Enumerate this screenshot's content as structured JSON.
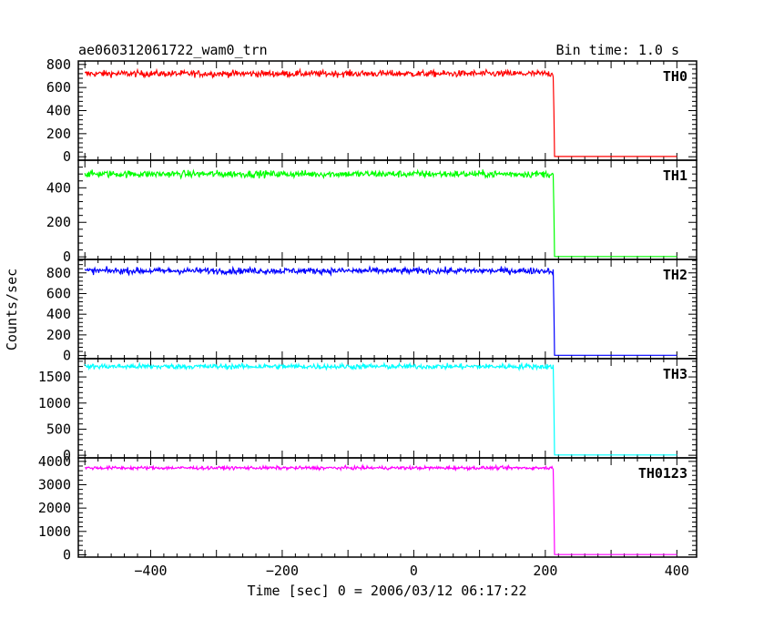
{
  "title": "ae060312061722_wam0_trn",
  "bin_time": "Bin time: 1.0 s",
  "xlabel": "Time [sec] 0 = 2006/03/12 06:17:22",
  "ylabel": "Counts/sec",
  "chart_data": {
    "type": "line",
    "xlim": [
      -510,
      430
    ],
    "x_ticks": [
      -400,
      -200,
      0,
      200,
      400
    ],
    "x_tick_labels": [
      "−400",
      "−200",
      "0",
      "200",
      "400"
    ],
    "grid": false,
    "dropoff_time": 212,
    "data_start": -500,
    "data_end": 400,
    "panels": [
      {
        "name": "TH0",
        "color": "#ff0000",
        "ylim": [
          -30,
          830
        ],
        "yticks": [
          0,
          200,
          400,
          600,
          800
        ],
        "ytick_labels": [
          "0",
          "200",
          "400",
          "600",
          "800"
        ],
        "mean": 720,
        "noise": 28,
        "after": 2
      },
      {
        "name": "TH1",
        "color": "#00ff00",
        "ylim": [
          -15,
          560
        ],
        "yticks": [
          0,
          200,
          400
        ],
        "ytick_labels": [
          "0",
          "200",
          "400"
        ],
        "mean": 480,
        "noise": 20,
        "after": 2
      },
      {
        "name": "TH2",
        "color": "#0000ff",
        "ylim": [
          -30,
          930
        ],
        "yticks": [
          0,
          200,
          400,
          600,
          800
        ],
        "ytick_labels": [
          "0",
          "200",
          "400",
          "600",
          "800"
        ],
        "mean": 820,
        "noise": 30,
        "after": 3
      },
      {
        "name": "TH3",
        "color": "#00ffff",
        "ylim": [
          -50,
          1850
        ],
        "yticks": [
          0,
          500,
          1000,
          1500
        ],
        "ytick_labels": [
          "0",
          "500",
          "1000",
          "1500"
        ],
        "mean": 1700,
        "noise": 50,
        "after": 5
      },
      {
        "name": "TH0123",
        "color": "#ff00ff",
        "ylim": [
          -100,
          4150
        ],
        "yticks": [
          0,
          1000,
          2000,
          3000,
          4000
        ],
        "ytick_labels": [
          "0",
          "1000",
          "2000",
          "3000",
          "4000"
        ],
        "mean": 3720,
        "noise": 70,
        "after": 10
      }
    ]
  }
}
